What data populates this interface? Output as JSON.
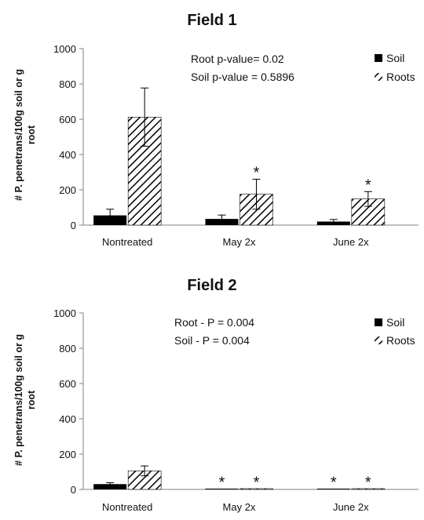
{
  "colors": {
    "soil": "#000000",
    "roots_stripe": "#000000",
    "roots_bg": "#ffffff",
    "axis": "#808080",
    "error_bar": "#000000"
  },
  "chart_data": [
    {
      "type": "bar",
      "title": "Field 1",
      "ylabel_line1": "# P. penetrans/100g soil or g",
      "ylabel_line2": "root",
      "xlabel": "",
      "categories": [
        "Nontreated",
        "May 2x",
        "June 2x"
      ],
      "ylim": [
        0,
        1000
      ],
      "yticks": [
        0,
        200,
        400,
        600,
        800,
        1000
      ],
      "series": [
        {
          "name": "Soil",
          "pattern": "solid",
          "values": [
            55,
            35,
            20
          ],
          "errors": [
            35,
            22,
            12
          ],
          "stars": [
            false,
            false,
            false
          ]
        },
        {
          "name": "Roots",
          "pattern": "hatched",
          "values": [
            612,
            175,
            148
          ],
          "errors": [
            165,
            85,
            42
          ],
          "stars": [
            false,
            true,
            true
          ]
        }
      ],
      "annotations": [
        "Root p-value= 0.02",
        "Soil  p-value = 0.5896"
      ],
      "legend_position": "top-right",
      "grid": false
    },
    {
      "type": "bar",
      "title": "Field 2",
      "ylabel_line1": "# P. penetrans/100g soil or g",
      "ylabel_line2": "root",
      "xlabel": "",
      "categories": [
        "Nontreated",
        "May 2x",
        "June 2x"
      ],
      "ylim": [
        0,
        1000
      ],
      "yticks": [
        0,
        200,
        400,
        600,
        800,
        1000
      ],
      "series": [
        {
          "name": "Soil",
          "pattern": "solid",
          "values": [
            30,
            3,
            3
          ],
          "errors": [
            8,
            0,
            0
          ],
          "stars": [
            false,
            true,
            true
          ]
        },
        {
          "name": "Roots",
          "pattern": "hatched",
          "values": [
            105,
            3,
            3
          ],
          "errors": [
            28,
            0,
            0
          ],
          "stars": [
            false,
            true,
            true
          ]
        }
      ],
      "annotations": [
        "Root - P = 0.004",
        "Soil - P = 0.004"
      ],
      "legend_position": "top-right",
      "grid": false
    }
  ]
}
